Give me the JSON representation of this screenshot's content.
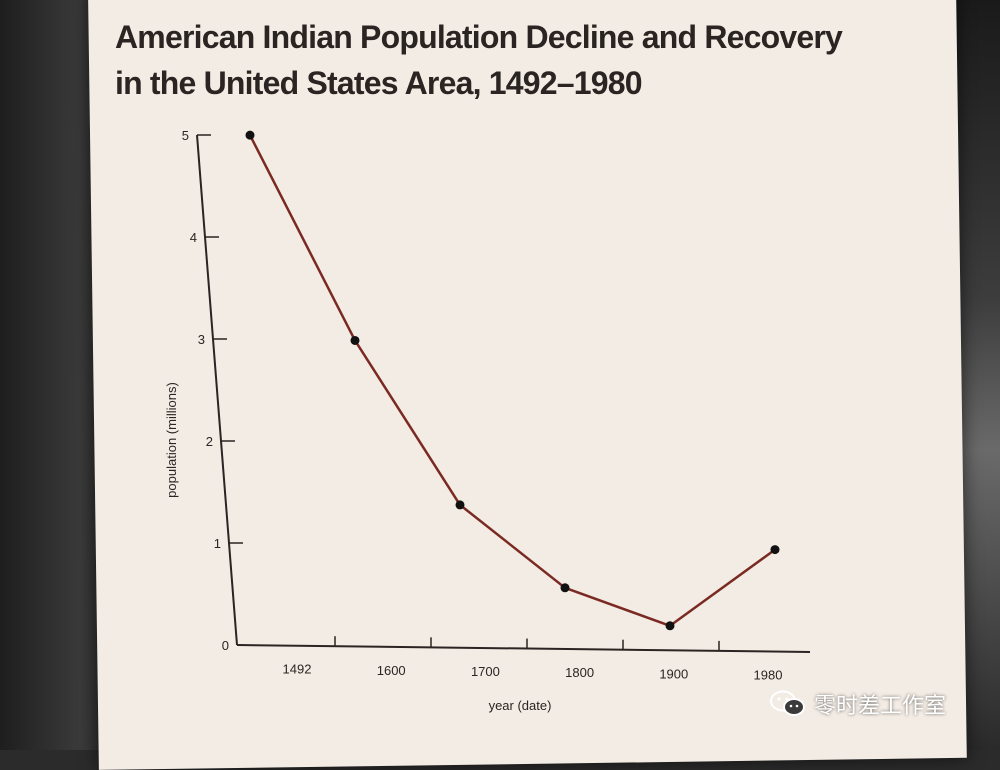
{
  "chart_data": {
    "type": "line",
    "title": "American Indian Population Decline and Recovery",
    "title_line2": "in the United States Area, 1492–1980",
    "xlabel": "year (date)",
    "ylabel": "population (millions)",
    "ylim": [
      0,
      5
    ],
    "yticks": [
      "0",
      "1",
      "2",
      "3",
      "4",
      "5"
    ],
    "xticks": [
      "1492",
      "1600",
      "1700",
      "1800",
      "1900",
      "1980"
    ],
    "series": [
      {
        "color": "#7a2a22",
        "points": [
          {
            "x": 1492,
            "y": 5.0
          },
          {
            "x": 1600,
            "y": 3.0
          },
          {
            "x": 1700,
            "y": 1.4
          },
          {
            "x": 1800,
            "y": 0.6
          },
          {
            "x": 1900,
            "y": 0.24
          },
          {
            "x": 1980,
            "y": 1.0
          }
        ]
      }
    ]
  },
  "watermark": {
    "text": "零时差工作室",
    "icon": "wechat-icon"
  }
}
